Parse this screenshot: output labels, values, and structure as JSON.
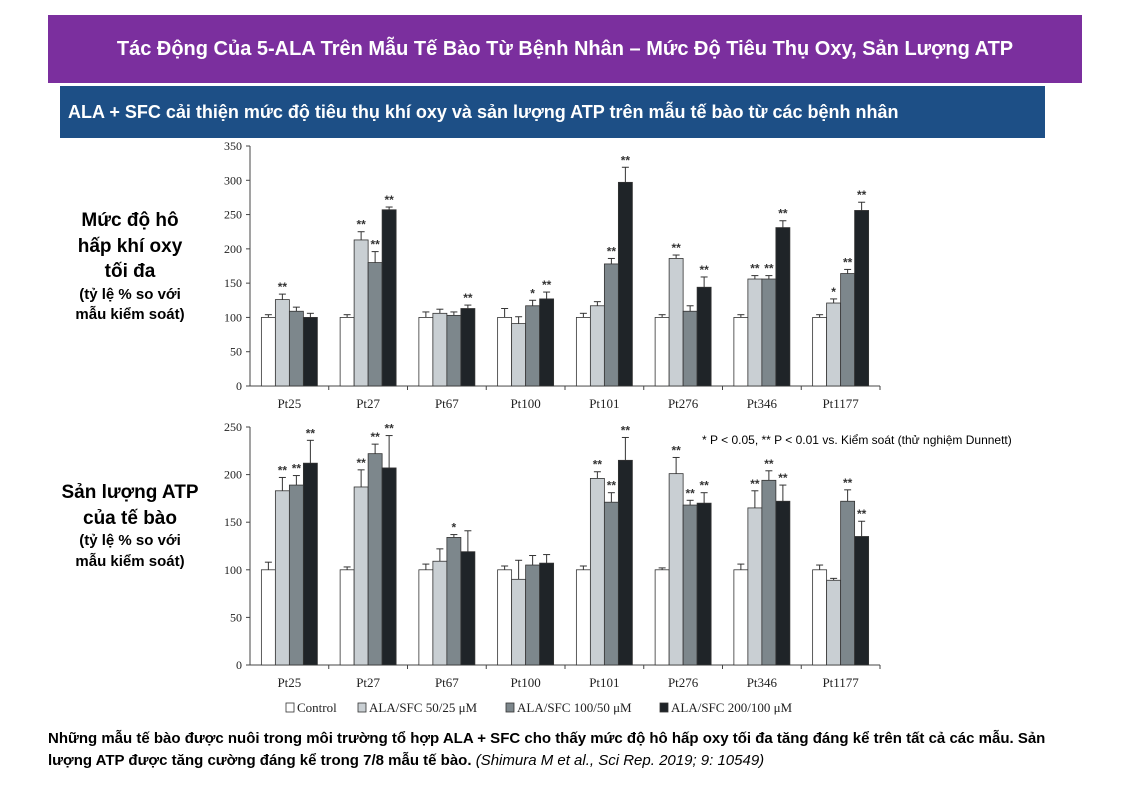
{
  "header": {
    "title": "Tác Động Của 5-ALA Trên Mẫu Tế Bào Từ Bệnh Nhân – Mức Độ Tiêu Thụ Oxy, Sản Lượng ATP",
    "subtitle": "ALA + SFC cải thiện mức độ tiêu thụ khí oxy và sản lượng ATP trên mẫu tế bào từ các bệnh nhân"
  },
  "labels": {
    "respiration_lines": [
      "Mức độ hô",
      "hấp khí oxy",
      "tối đa"
    ],
    "respiration_unit_lines": [
      "(tỷ lệ % so với",
      "mẫu kiểm soát)"
    ],
    "atp_lines": [
      "Sản lượng ATP",
      "của tế bào"
    ],
    "atp_unit_lines": [
      "(tỷ lệ % so với",
      "mẫu kiểm soát)"
    ]
  },
  "significance_note": "* P < 0.05, ** P < 0.01 vs. Kiểm soát (thử nghiệm Dunnett)",
  "caption": {
    "text": "Những mẫu tế bào được nuôi trong môi trường tổ hợp ALA + SFC cho thấy mức độ hô hấp oxy tối đa tăng đáng kể trên tất cả các mẫu. Sản lượng ATP được tăng cường đáng kể trong 7/8 mẫu tế bào.",
    "citation": "(Shimura M et al., Sci Rep. 2019; 9: 10549)"
  },
  "colors": {
    "title_bg": "#7b2f9e",
    "subtitle_bg": "#1d4f86",
    "series": [
      "#ffffff",
      "#c9cfd3",
      "#7d878c",
      "#1f2428"
    ]
  },
  "chart_data": [
    {
      "type": "bar",
      "categories": [
        "Pt25",
        "Pt27",
        "Pt67",
        "Pt100",
        "Pt101",
        "Pt276",
        "Pt346",
        "Pt1177"
      ],
      "series": [
        {
          "name": "Control",
          "values": [
            100,
            100,
            100,
            100,
            100,
            100,
            100,
            100
          ],
          "errors": [
            4,
            4,
            8,
            13,
            6,
            4,
            4,
            4
          ],
          "marks": [
            "",
            "",
            "",
            "",
            "",
            "",
            "",
            ""
          ]
        },
        {
          "name": "ALA/SFC 50/25 μM",
          "values": [
            126,
            213,
            106,
            91,
            117,
            186,
            156,
            121
          ],
          "errors": [
            8,
            12,
            6,
            10,
            6,
            5,
            5,
            6
          ],
          "marks": [
            "**",
            "**",
            "",
            "",
            "",
            "**",
            "**",
            "*"
          ]
        },
        {
          "name": "ALA/SFC 100/50 μM",
          "values": [
            109,
            180,
            103,
            117,
            178,
            109,
            156,
            164
          ],
          "errors": [
            6,
            16,
            5,
            8,
            8,
            8,
            5,
            6
          ],
          "marks": [
            "",
            "**",
            "",
            "*",
            "**",
            "",
            "**",
            "**"
          ]
        },
        {
          "name": "ALA/SFC 200/100 μM",
          "values": [
            100,
            257,
            113,
            127,
            297,
            144,
            231,
            256
          ],
          "errors": [
            6,
            4,
            5,
            10,
            22,
            15,
            10,
            12
          ],
          "marks": [
            "",
            "**",
            "**",
            "**",
            "**",
            "**",
            "**",
            "**"
          ]
        }
      ],
      "ylim": [
        0,
        350
      ],
      "yticks": [
        0,
        50,
        100,
        150,
        200,
        250,
        300,
        350
      ]
    },
    {
      "type": "bar",
      "categories": [
        "Pt25",
        "Pt27",
        "Pt67",
        "Pt100",
        "Pt101",
        "Pt276",
        "Pt346",
        "Pt1177"
      ],
      "series": [
        {
          "name": "Control",
          "values": [
            100,
            100,
            100,
            100,
            100,
            100,
            100,
            100
          ],
          "errors": [
            8,
            3,
            6,
            4,
            4,
            2,
            6,
            5
          ],
          "marks": [
            "",
            "",
            "",
            "",
            "",
            "",
            "",
            ""
          ]
        },
        {
          "name": "ALA/SFC 50/25 μM",
          "values": [
            183,
            187,
            109,
            90,
            196,
            201,
            165,
            89
          ],
          "errors": [
            14,
            18,
            13,
            20,
            7,
            17,
            18,
            2
          ],
          "marks": [
            "**",
            "**",
            "",
            "",
            "**",
            "**",
            "**",
            ""
          ]
        },
        {
          "name": "ALA/SFC 100/50 μM",
          "values": [
            189,
            222,
            134,
            105,
            171,
            168,
            194,
            172
          ],
          "errors": [
            10,
            10,
            3,
            10,
            10,
            5,
            10,
            12
          ],
          "marks": [
            "**",
            "**",
            "*",
            "",
            "**",
            "**",
            "**",
            "**"
          ]
        },
        {
          "name": "ALA/SFC 200/100 μM",
          "values": [
            212,
            207,
            119,
            107,
            215,
            170,
            172,
            135
          ],
          "errors": [
            24,
            34,
            22,
            9,
            24,
            11,
            17,
            16
          ],
          "marks": [
            "**",
            "**",
            "",
            "",
            "**",
            "**",
            "**",
            "**"
          ]
        }
      ],
      "ylim": [
        0,
        250
      ],
      "yticks": [
        0,
        50,
        100,
        150,
        200,
        250
      ]
    }
  ]
}
